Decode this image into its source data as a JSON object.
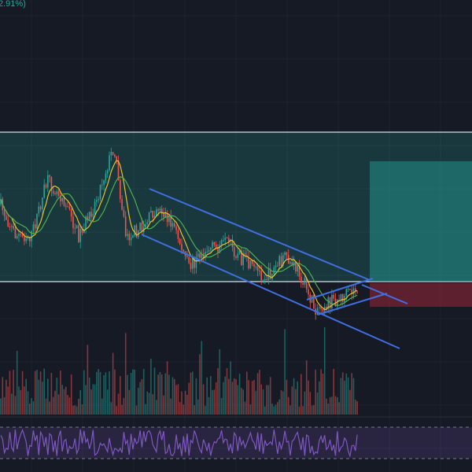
{
  "header": {
    "change": "2.91%)"
  }
}
